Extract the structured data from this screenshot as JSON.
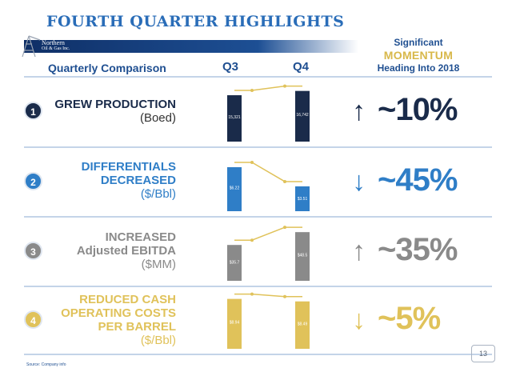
{
  "title": "FOURTH QUARTER HIGHLIGHTS",
  "logo": {
    "line1": "Northern",
    "line2": "Oil & Gas Inc."
  },
  "header": {
    "comparison_label": "Quarterly Comparison",
    "q3": "Q3",
    "q4": "Q4"
  },
  "momentum": {
    "line1": "Significant",
    "line2": "MOMENTUM",
    "line3": "Heading Into 2018"
  },
  "source": "Source: Company info",
  "page_number": "13",
  "colors": {
    "navy": "#1a2b4a",
    "blue": "#2f7ec7",
    "gray": "#8a8a8a",
    "gold": "#e0c25a",
    "header_blue": "#1f4f91"
  },
  "rows": [
    {
      "number": "1",
      "label_lines": [
        "GREW PRODUCTION"
      ],
      "unit": "(Boed)",
      "change": "~10%",
      "direction": "up",
      "color_key": "navy",
      "label_color": "navy",
      "change_color": "navy"
    },
    {
      "number": "2",
      "label_lines": [
        "DIFFERENTIALS",
        "DECREASED"
      ],
      "unit": "($/Bbl)",
      "change": "~45%",
      "direction": "down",
      "color_key": "blue",
      "label_color": "blue",
      "change_color": "blue"
    },
    {
      "number": "3",
      "label_lines": [
        "INCREASED",
        "Adjusted EBITDA"
      ],
      "unit": "($MM)",
      "change": "~35%",
      "direction": "up",
      "color_key": "gray",
      "label_color": "gray",
      "change_color": "gray"
    },
    {
      "number": "4",
      "label_lines": [
        "REDUCED CASH",
        "OPERATING COSTS",
        "PER BARREL"
      ],
      "unit": "($/Bbl)",
      "change": "~5%",
      "direction": "down",
      "color_key": "gold",
      "label_color": "gold",
      "change_color": "gold"
    }
  ],
  "chart_data": [
    {
      "type": "bar",
      "categories": [
        "Q3",
        "Q4"
      ],
      "series": [
        {
          "values": [
            15321,
            16742
          ]
        }
      ],
      "data_labels": [
        "15,321",
        "16,742"
      ],
      "ylim": [
        0,
        18500
      ]
    },
    {
      "type": "bar",
      "categories": [
        "Q3",
        "Q4"
      ],
      "series": [
        {
          "values": [
            6.22,
            3.51
          ]
        }
      ],
      "data_labels": [
        "$6.22",
        "$3.51"
      ],
      "ylim": [
        0,
        7.8
      ]
    },
    {
      "type": "bar",
      "categories": [
        "Q3",
        "Q4"
      ],
      "series": [
        {
          "values": [
            35.7,
            48.5
          ]
        }
      ],
      "data_labels": [
        "$35.7",
        "$48.5"
      ],
      "ylim": [
        0,
        55
      ]
    },
    {
      "type": "bar",
      "categories": [
        "Q3",
        "Q4"
      ],
      "series": [
        {
          "values": [
            8.94,
            8.49
          ]
        }
      ],
      "data_labels": [
        "$8.94",
        "$8.49"
      ],
      "ylim": [
        0,
        9.6
      ]
    }
  ]
}
